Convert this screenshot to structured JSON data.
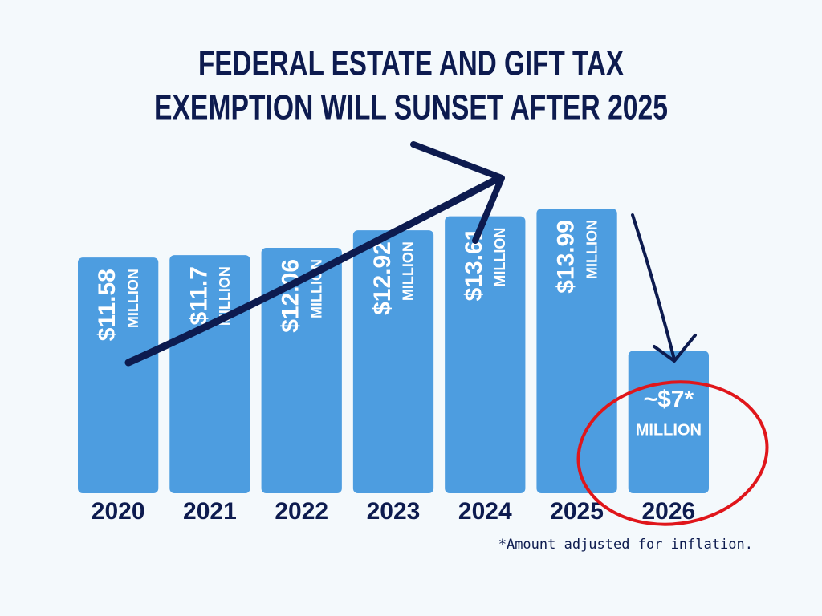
{
  "chart_data": {
    "type": "bar",
    "title": [
      "FEDERAL ESTATE AND GIFT TAX",
      "EXEMPTION WILL SUNSET AFTER 2025"
    ],
    "categories": [
      "2020",
      "2021",
      "2022",
      "2023",
      "2024",
      "2025",
      "2026"
    ],
    "values": [
      11.58,
      11.7,
      12.06,
      12.92,
      13.61,
      13.99,
      7
    ],
    "value_labels": [
      "$11.58",
      "$11.7",
      "$12.06",
      "$12.92",
      "$13.61",
      "$13.99",
      "~$7*"
    ],
    "unit_label": "MILLION",
    "color": "#4d9de0",
    "footnote": "*Amount adjusted for inflation."
  }
}
